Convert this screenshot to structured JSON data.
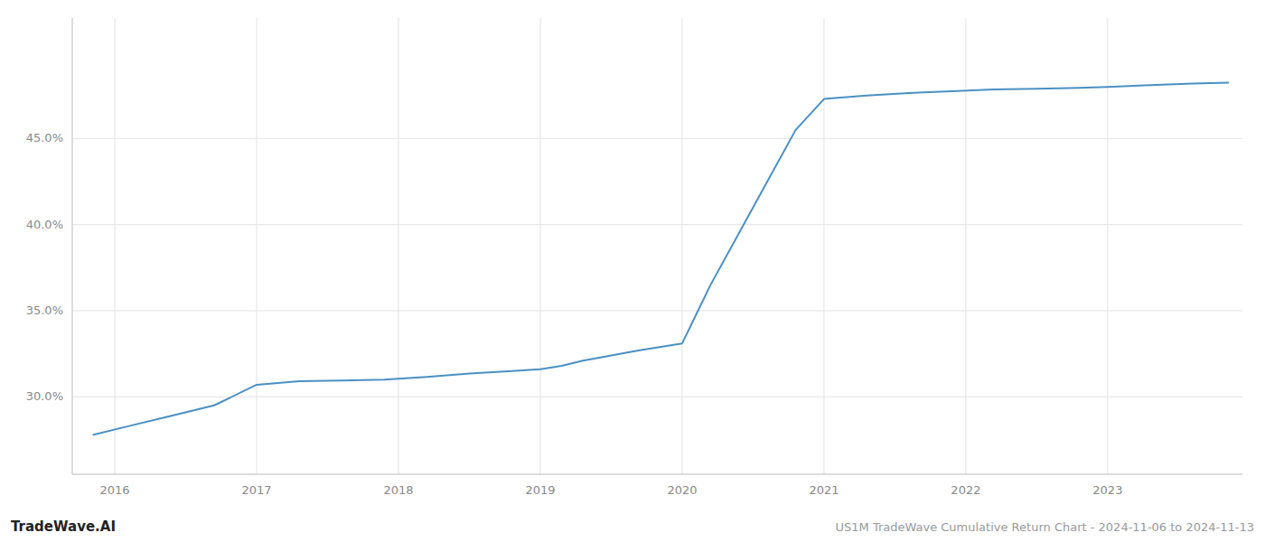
{
  "chart_data": {
    "type": "line",
    "title": "US1M TradeWave Cumulative Return Chart - 2024-11-06 to 2024-11-13",
    "annotations": [
      "TradeWave.AI"
    ],
    "x": [
      2015.85,
      2016.1,
      2016.4,
      2016.7,
      2017.0,
      2017.3,
      2017.6,
      2017.9,
      2018.2,
      2018.5,
      2018.8,
      2019.0,
      2019.15,
      2019.3,
      2019.5,
      2019.7,
      2019.85,
      2020.0,
      2020.2,
      2020.4,
      2020.6,
      2020.8,
      2021.0,
      2021.3,
      2021.6,
      2021.9,
      2022.2,
      2022.5,
      2022.8,
      2023.0,
      2023.3,
      2023.6,
      2023.85
    ],
    "values": [
      27.8,
      28.3,
      28.9,
      29.5,
      30.7,
      30.9,
      30.95,
      31.0,
      31.15,
      31.35,
      31.5,
      31.6,
      31.8,
      32.1,
      32.4,
      32.7,
      32.9,
      33.1,
      36.5,
      39.5,
      42.5,
      45.5,
      47.3,
      47.5,
      47.65,
      47.75,
      47.85,
      47.9,
      47.95,
      48.0,
      48.1,
      48.2,
      48.25
    ],
    "color": "#4a90c4",
    "xlim": [
      2015.7,
      2023.95
    ],
    "xticks": [
      2016,
      2017,
      2018,
      2019,
      2020,
      2021,
      2022,
      2023
    ],
    "ylim": [
      25.5,
      52.0
    ],
    "yticks": [
      {
        "value": 30.0,
        "label": "30.0%"
      },
      {
        "value": 35.0,
        "label": "35.0%"
      },
      {
        "value": 40.0,
        "label": "40.0%"
      },
      {
        "value": 45.0,
        "label": "45.0%"
      }
    ],
    "grid": true
  }
}
